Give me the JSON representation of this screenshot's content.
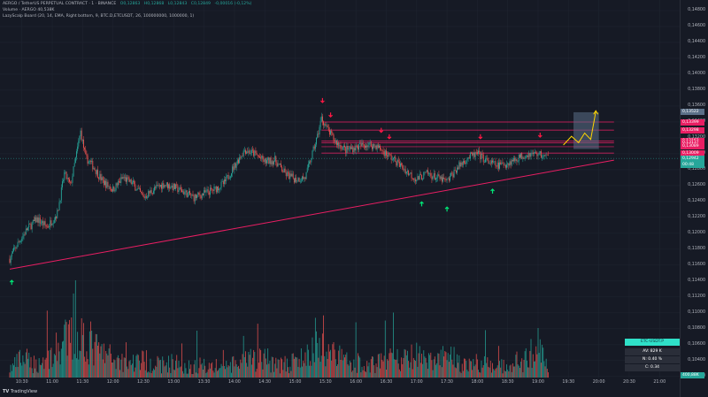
{
  "header": {
    "symbol_line": "AERGO / TetherUS PERPETUAL CONTRACT · 1 · BINANCE",
    "ohlc": [
      "O0,12863",
      "H0,12868",
      "L0,12843",
      "C0,12849",
      "-0,00016 (-0,12%)"
    ],
    "volume_line": "Volume · AERGO   40,538K",
    "indicator_line": "LazyScalp Board (20, 14, EMA, Right bottom, 9, BTC.D,ETCUSDT, 26, 100000000, 1000000, 1)"
  },
  "colors": {
    "background": "#161a25",
    "up": "#26a69a",
    "down": "#ef5350",
    "trendline": "#e91e63",
    "level_line": "#e91e63",
    "arrow_up": "#00e676",
    "arrow_down": "#ff1744",
    "projection": "#ffd600",
    "box": "#5b7088"
  },
  "price_axis": {
    "labels": [
      "0,14800",
      "0,14600",
      "0,14400",
      "0,14200",
      "0,14000",
      "0,13800",
      "0,13600",
      "0,13400",
      "0,13200",
      "0,13000",
      "0,12800",
      "0,12600",
      "0,12400",
      "0,12200",
      "0,12000",
      "0,11800",
      "0,11600",
      "0,11400",
      "0,11200",
      "0,11000",
      "0,10800",
      "0,10600",
      "0,10400",
      "0,10200"
    ],
    "tags": [
      {
        "text": "0,13522",
        "color": "#5b7088"
      },
      {
        "text": "0,13399",
        "color": "#e91e63"
      },
      {
        "text": "0,13298",
        "color": "#e91e63"
      },
      {
        "text": "0,13162",
        "color": "#e91e63"
      },
      {
        "text": "0,13137",
        "color": "#e91e63"
      },
      {
        "text": "0,13089",
        "color": "#e91e63"
      },
      {
        "text": "0,13009",
        "color": "#e91e63"
      },
      {
        "text": "0,12942",
        "color": "#26a69a"
      },
      {
        "text": "00:48",
        "color": "#26a69a"
      },
      {
        "text": "400,88K",
        "color": "#26a69a"
      }
    ]
  },
  "time_axis": {
    "labels": [
      "10:30",
      "11:00",
      "11:30",
      "12:00",
      "12:30",
      "13:00",
      "13:30",
      "14:00",
      "14:30",
      "15:00",
      "15:30",
      "16:00",
      "16:30",
      "17:00",
      "17:30",
      "18:00",
      "18:30",
      "19:00",
      "19:30",
      "20:00",
      "20:30",
      "21:00"
    ]
  },
  "board": {
    "name": "ETC-USDT.P",
    "av": "AV: 829 K",
    "n": "N: 0.40 %",
    "c": "C: 0.34"
  },
  "brand": "TradingView",
  "chart_data": {
    "type": "candlestick",
    "series_name": "AERGO/USDT",
    "x_range": [
      "10:18",
      "19:10"
    ],
    "ylim": [
      0.102,
      0.149
    ],
    "close_path": [
      [
        "10:18",
        0.1168
      ],
      [
        "10:25",
        0.1185
      ],
      [
        "10:35",
        0.1205
      ],
      [
        "10:45",
        0.1218
      ],
      [
        "10:55",
        0.1208
      ],
      [
        "11:05",
        0.1225
      ],
      [
        "11:12",
        0.1275
      ],
      [
        "11:18",
        0.126
      ],
      [
        "11:24",
        0.13
      ],
      [
        "11:28",
        0.1328
      ],
      [
        "11:33",
        0.1295
      ],
      [
        "11:40",
        0.1285
      ],
      [
        "11:50",
        0.1265
      ],
      [
        "12:00",
        0.1255
      ],
      [
        "12:10",
        0.127
      ],
      [
        "12:20",
        0.1262
      ],
      [
        "12:30",
        0.1245
      ],
      [
        "12:40",
        0.1255
      ],
      [
        "12:50",
        0.1262
      ],
      [
        "13:00",
        0.1258
      ],
      [
        "13:10",
        0.1252
      ],
      [
        "13:20",
        0.1245
      ],
      [
        "13:30",
        0.125
      ],
      [
        "13:40",
        0.1255
      ],
      [
        "13:50",
        0.1263
      ],
      [
        "14:00",
        0.1285
      ],
      [
        "14:10",
        0.1305
      ],
      [
        "14:20",
        0.13
      ],
      [
        "14:30",
        0.129
      ],
      [
        "14:40",
        0.1292
      ],
      [
        "14:50",
        0.1275
      ],
      [
        "15:00",
        0.1268
      ],
      [
        "15:10",
        0.127
      ],
      [
        "15:17",
        0.13
      ],
      [
        "15:22",
        0.1322
      ],
      [
        "15:26",
        0.1345
      ],
      [
        "15:32",
        0.133
      ],
      [
        "15:40",
        0.1315
      ],
      [
        "15:50",
        0.1305
      ],
      [
        "16:00",
        0.1308
      ],
      [
        "16:10",
        0.1312
      ],
      [
        "16:20",
        0.131
      ],
      [
        "16:30",
        0.13
      ],
      [
        "16:40",
        0.129
      ],
      [
        "16:50",
        0.1278
      ],
      [
        "17:00",
        0.1268
      ],
      [
        "17:10",
        0.1275
      ],
      [
        "17:20",
        0.127
      ],
      [
        "17:30",
        0.1265
      ],
      [
        "17:40",
        0.1282
      ],
      [
        "17:50",
        0.1295
      ],
      [
        "18:00",
        0.13
      ],
      [
        "18:10",
        0.129
      ],
      [
        "18:20",
        0.1285
      ],
      [
        "18:30",
        0.1288
      ],
      [
        "18:40",
        0.1295
      ],
      [
        "18:50",
        0.13
      ],
      [
        "19:00",
        0.13
      ],
      [
        "19:10",
        0.1295
      ]
    ],
    "volume_path": [
      [
        "10:18",
        8
      ],
      [
        "10:30",
        18
      ],
      [
        "10:45",
        12
      ],
      [
        "11:00",
        22
      ],
      [
        "11:15",
        35
      ],
      [
        "11:30",
        40
      ],
      [
        "11:45",
        25
      ],
      [
        "12:00",
        18
      ],
      [
        "12:15",
        14
      ],
      [
        "12:30",
        16
      ],
      [
        "12:45",
        12
      ],
      [
        "13:00",
        14
      ],
      [
        "13:15",
        10
      ],
      [
        "13:30",
        12
      ],
      [
        "13:45",
        10
      ],
      [
        "14:00",
        12
      ],
      [
        "14:15",
        16
      ],
      [
        "14:30",
        18
      ],
      [
        "14:45",
        12
      ],
      [
        "15:00",
        14
      ],
      [
        "15:15",
        22
      ],
      [
        "15:30",
        30
      ],
      [
        "15:45",
        18
      ],
      [
        "16:00",
        14
      ],
      [
        "16:15",
        12
      ],
      [
        "16:30",
        18
      ],
      [
        "16:45",
        16
      ],
      [
        "17:00",
        20
      ],
      [
        "17:15",
        14
      ],
      [
        "17:30",
        22
      ],
      [
        "17:45",
        12
      ],
      [
        "18:00",
        14
      ],
      [
        "18:15",
        10
      ],
      [
        "18:30",
        12
      ],
      [
        "18:45",
        14
      ],
      [
        "19:00",
        30
      ],
      [
        "19:10",
        6
      ]
    ],
    "trendline": {
      "start": [
        "10:18",
        0.1155
      ],
      "end": [
        "20:15",
        0.1292
      ]
    },
    "resistance_levels": [
      0.13399,
      0.13298,
      0.13162,
      0.13137,
      0.13089,
      0.13009
    ],
    "level_start": "15:26",
    "down_arrows_at": [
      "15:27",
      "15:35",
      "16:25",
      "16:33",
      "18:03",
      "19:02"
    ],
    "up_arrows_at": [
      "10:20",
      "17:05",
      "17:30",
      "18:15"
    ],
    "projection": [
      [
        "19:25",
        0.1311
      ],
      [
        "19:33",
        0.1322
      ],
      [
        "19:40",
        0.1314
      ],
      [
        "19:46",
        0.1326
      ],
      [
        "19:52",
        0.1318
      ],
      [
        "19:57",
        0.1353
      ]
    ],
    "target_box": {
      "t0": "19:35",
      "t1": "20:00",
      "y0": 0.1306,
      "y1": 0.13522
    }
  }
}
